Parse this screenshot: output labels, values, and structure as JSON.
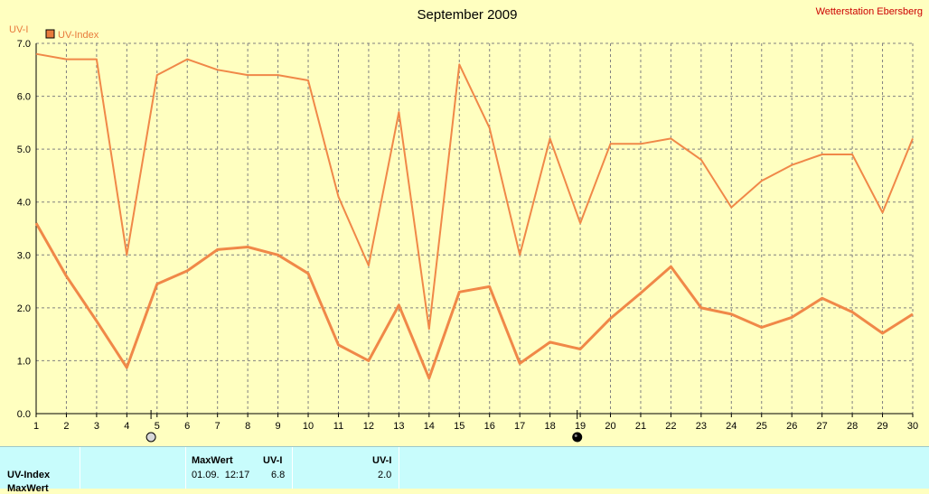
{
  "chart_data": {
    "type": "line",
    "title": "September 2009",
    "station": "Wetterstation Ebersberg",
    "ylabel": "UV-I",
    "legend": "UV-Index",
    "legend_color": "#e87a3c",
    "line_color": "#f08848",
    "background": "#ffffc0",
    "ylim": [
      0,
      7
    ],
    "yticks": [
      "0.0",
      "1.0",
      "2.0",
      "3.0",
      "4.0",
      "5.0",
      "6.0",
      "7.0"
    ],
    "x": [
      1,
      2,
      3,
      4,
      5,
      6,
      7,
      8,
      9,
      10,
      11,
      12,
      13,
      14,
      15,
      16,
      17,
      18,
      19,
      20,
      21,
      22,
      23,
      24,
      25,
      26,
      27,
      28,
      29,
      30
    ],
    "series": [
      {
        "role": "max",
        "values": [
          6.8,
          6.7,
          6.7,
          3.0,
          6.4,
          6.7,
          6.5,
          6.4,
          6.4,
          6.3,
          4.1,
          2.8,
          5.7,
          1.6,
          6.6,
          5.4,
          3.0,
          5.2,
          3.6,
          5.1,
          5.1,
          5.2,
          4.8,
          3.9,
          4.4,
          4.7,
          4.9,
          4.9,
          3.8,
          5.2
        ]
      },
      {
        "role": "mean",
        "values": [
          3.6,
          2.6,
          1.75,
          0.87,
          2.45,
          2.7,
          3.1,
          3.15,
          3.0,
          2.65,
          1.3,
          1.0,
          2.05,
          0.67,
          2.3,
          2.4,
          0.95,
          1.35,
          1.22,
          1.8,
          2.28,
          2.78,
          2.0,
          1.88,
          1.63,
          1.82,
          2.18,
          1.92,
          1.52,
          1.88
        ]
      }
    ],
    "moon_markers": [
      {
        "day": 4.8,
        "type": "full-moon"
      },
      {
        "day": 18.9,
        "type": "new-moon"
      }
    ],
    "grid": true
  },
  "stats": {
    "row_label": "UV-Index",
    "row2_label": "MaxWert",
    "max_header": "MaxWert",
    "max_unit": "UV-I",
    "max_datetime": "01.09.  12:17",
    "max_value": "6.8",
    "mean_unit": "UV-I",
    "mean_value": "2.0"
  }
}
